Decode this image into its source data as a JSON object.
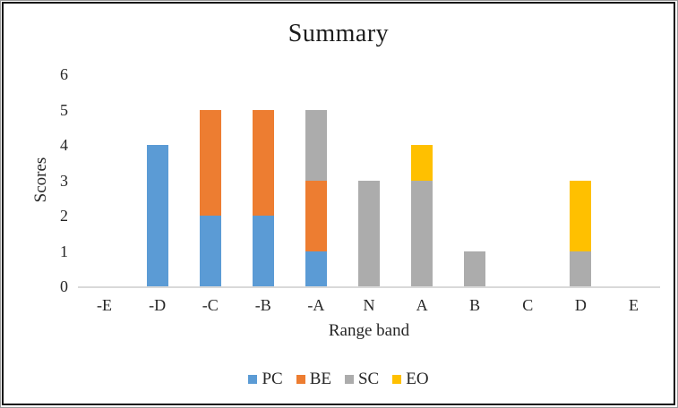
{
  "chart_data": {
    "type": "bar",
    "stacked": true,
    "title": "Summary",
    "xlabel": "Range band",
    "ylabel": "Scores",
    "categories": [
      "-E",
      "-D",
      "-C",
      "-B",
      "-A",
      "N",
      "A",
      "B",
      "C",
      "D",
      "E"
    ],
    "series": [
      {
        "name": "PC",
        "color": "#5B9BD5",
        "values": [
          0,
          4,
          2,
          2,
          1,
          0,
          0,
          0,
          0,
          0,
          0
        ]
      },
      {
        "name": "BE",
        "color": "#ED7D31",
        "values": [
          0,
          0,
          3,
          3,
          2,
          0,
          0,
          0,
          0,
          0,
          0
        ]
      },
      {
        "name": "SC",
        "color": "#ACACAC",
        "values": [
          0,
          0,
          0,
          0,
          2,
          3,
          3,
          1,
          0,
          1,
          0
        ]
      },
      {
        "name": "EO",
        "color": "#FFC000",
        "values": [
          0,
          0,
          0,
          0,
          0,
          0,
          1,
          0,
          0,
          2,
          0
        ]
      }
    ],
    "ylim": [
      0,
      6
    ],
    "yticks": [
      0,
      1,
      2,
      3,
      4,
      5,
      6
    ],
    "grid": false,
    "legend_position": "bottom",
    "axis_line_color": "#D9D9D9",
    "text_color": "#262626"
  }
}
